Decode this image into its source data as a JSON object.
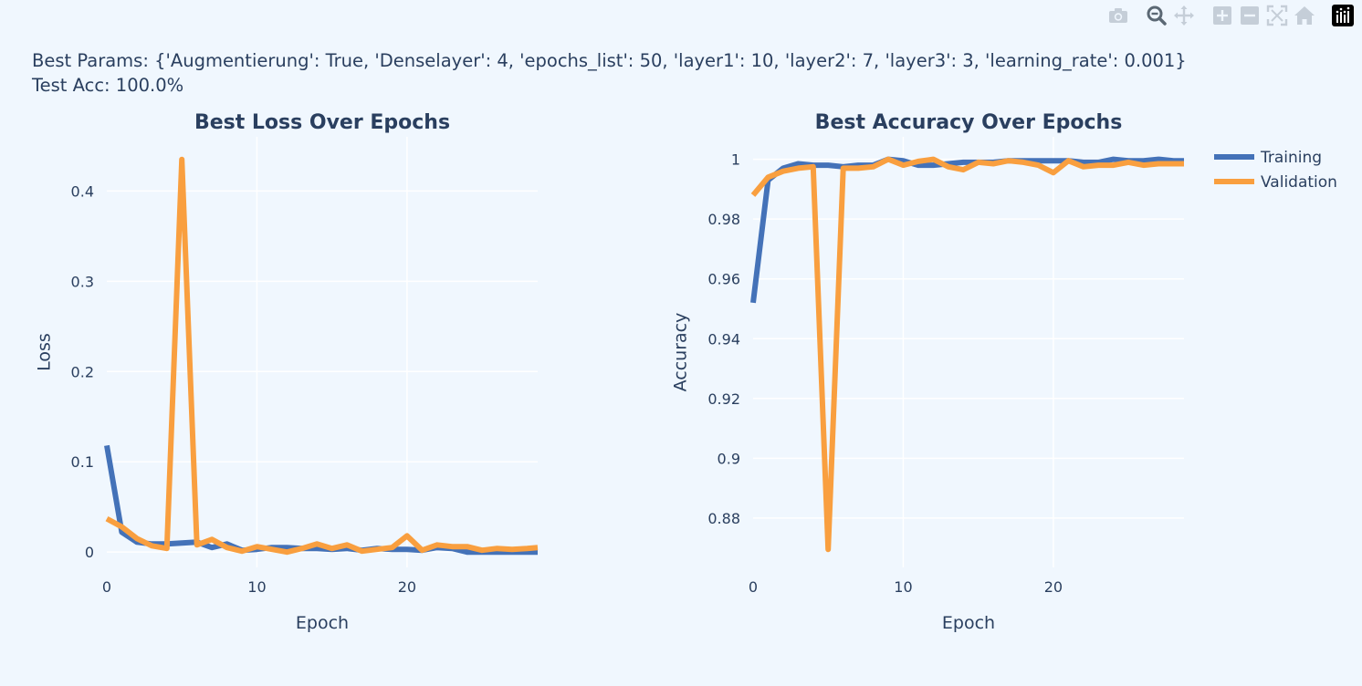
{
  "header": {
    "params_line": "Best Params: {'Augmentierung': True, 'Denselayer': 4, 'epochs_list': 50, 'layer1': 10, 'layer2': 7, 'layer3': 3, 'learning_rate': 0.001}",
    "test_acc_line": "Test Acc: 100.0%"
  },
  "modebar": {
    "buttons": [
      "camera-icon",
      "zoom-icon",
      "pan-icon",
      "zoom-in-icon",
      "zoom-out-icon",
      "autoscale-icon",
      "reset-axes-icon",
      "plotly-logo-icon"
    ]
  },
  "colors": {
    "background": "#f0f7fe",
    "training": "#4472b8",
    "validation": "#f99f3f",
    "text": "#2a3f5f",
    "grid": "#ffffff"
  },
  "legend": {
    "position": "top-right",
    "items": [
      "Training",
      "Validation"
    ]
  },
  "chart_data": [
    {
      "type": "line",
      "title": "Best Loss Over Epochs",
      "xlabel": "Epoch",
      "ylabel": "Loss",
      "xlim": [
        0,
        28.7
      ],
      "ylim": [
        -0.017,
        0.46
      ],
      "xticks": [
        0,
        10,
        20
      ],
      "xtick_labels": [
        "0",
        "10",
        "20"
      ],
      "yticks": [
        0,
        0.1,
        0.2,
        0.3,
        0.4
      ],
      "ytick_labels": [
        "0",
        "0.1",
        "0.2",
        "0.3",
        "0.4"
      ],
      "grid": true,
      "x": [
        0,
        1,
        2,
        3,
        4,
        5,
        6,
        7,
        8,
        9,
        10,
        11,
        12,
        13,
        14,
        15,
        16,
        17,
        18,
        19,
        20,
        21,
        22,
        23,
        24,
        25,
        26,
        27,
        28,
        29
      ],
      "series": [
        {
          "name": "Training",
          "values": [
            0.118,
            0.022,
            0.011,
            0.009,
            0.009,
            0.01,
            0.011,
            0.005,
            0.009,
            0.002,
            0.003,
            0.005,
            0.005,
            0.004,
            0.004,
            0.003,
            0.004,
            0.002,
            0.004,
            0.003,
            0.003,
            0.002,
            0.005,
            0.004,
            0.0,
            0.0,
            0.0,
            0.0,
            0.0,
            0.0
          ]
        },
        {
          "name": "Validation",
          "values": [
            0.037,
            0.028,
            0.015,
            0.007,
            0.004,
            0.435,
            0.008,
            0.014,
            0.005,
            0.001,
            0.006,
            0.003,
            0.0,
            0.004,
            0.009,
            0.004,
            0.008,
            0.001,
            0.003,
            0.005,
            0.018,
            0.002,
            0.008,
            0.006,
            0.006,
            0.002,
            0.004,
            0.003,
            0.004,
            0.005
          ]
        }
      ]
    },
    {
      "type": "line",
      "title": "Best Accuracy Over Epochs",
      "xlabel": "Epoch",
      "ylabel": "Accuracy",
      "xlim": [
        0,
        28.7
      ],
      "ylim": [
        0.8635,
        1.0075
      ],
      "xticks": [
        0,
        10,
        20
      ],
      "xtick_labels": [
        "0",
        "10",
        "20"
      ],
      "yticks": [
        0.88,
        0.9,
        0.92,
        0.94,
        0.96,
        0.98,
        1.0
      ],
      "ytick_labels": [
        "0.88",
        "0.9",
        "0.92",
        "0.94",
        "0.96",
        "0.98",
        "1"
      ],
      "grid": true,
      "x": [
        0,
        1,
        2,
        3,
        4,
        5,
        6,
        7,
        8,
        9,
        10,
        11,
        12,
        13,
        14,
        15,
        16,
        17,
        18,
        19,
        20,
        21,
        22,
        23,
        24,
        25,
        26,
        27,
        28,
        29
      ],
      "series": [
        {
          "name": "Training",
          "values": [
            0.952,
            0.993,
            0.997,
            0.9985,
            0.998,
            0.998,
            0.9975,
            0.998,
            0.998,
            1.0,
            0.9995,
            0.998,
            0.998,
            0.9985,
            0.999,
            0.999,
            0.999,
            0.9995,
            0.9995,
            0.9995,
            0.9995,
            0.9995,
            0.999,
            0.999,
            1.0,
            0.9995,
            0.9995,
            1.0,
            0.9995,
            0.9995
          ]
        },
        {
          "name": "Validation",
          "values": [
            0.988,
            0.994,
            0.996,
            0.997,
            0.9975,
            0.8695,
            0.997,
            0.997,
            0.9975,
            1.0,
            0.998,
            0.9993,
            1.0,
            0.9975,
            0.9965,
            0.999,
            0.9985,
            0.9995,
            0.999,
            0.998,
            0.9955,
            0.9995,
            0.9975,
            0.998,
            0.998,
            0.999,
            0.998,
            0.9985,
            0.9985,
            0.9985
          ]
        }
      ]
    }
  ]
}
